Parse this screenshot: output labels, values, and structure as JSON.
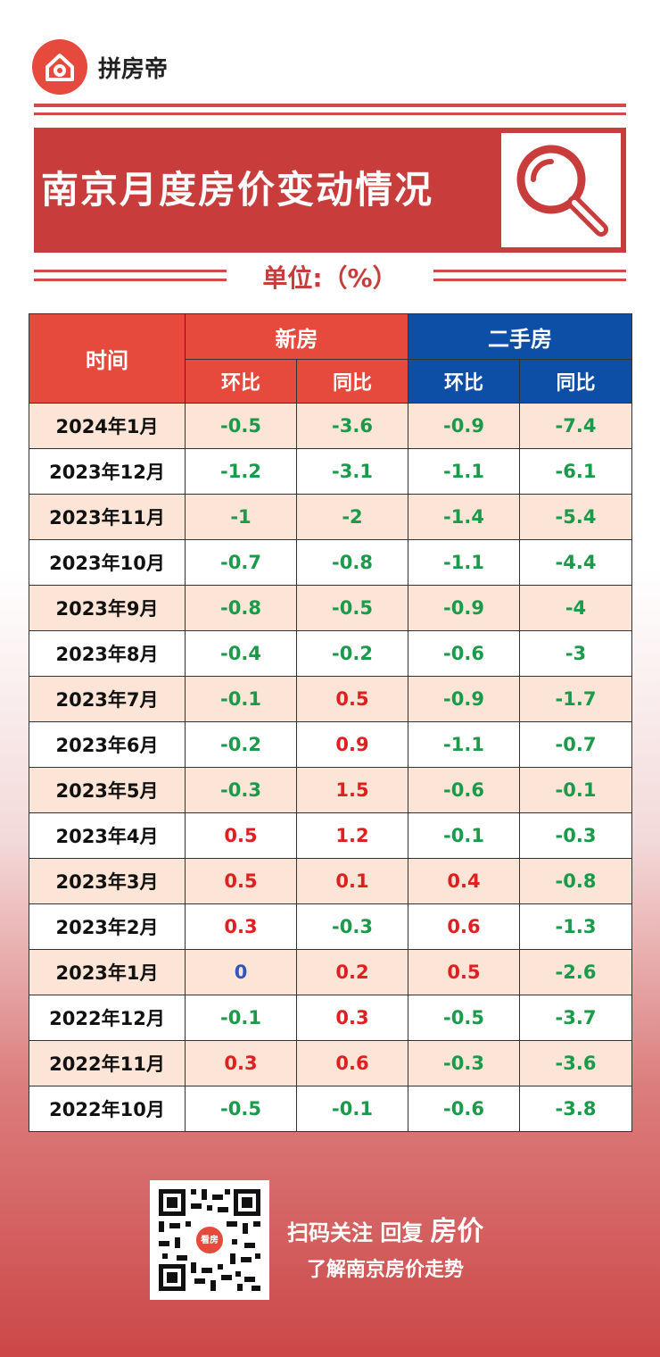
{
  "brand": {
    "name": "拼房帝"
  },
  "title": "南京月度房价变动情况",
  "unit": "单位:（%）",
  "table": {
    "time_header": "时间",
    "new_header": "新房",
    "used_header": "二手房",
    "sub_mom": "环比",
    "sub_yoy": "同比",
    "rows": [
      {
        "date": "2024年1月",
        "new_mom": "-0.5",
        "new_yoy": "-3.6",
        "used_mom": "-0.9",
        "used_yoy": "-7.4"
      },
      {
        "date": "2023年12月",
        "new_mom": "-1.2",
        "new_yoy": "-3.1",
        "used_mom": "-1.1",
        "used_yoy": "-6.1"
      },
      {
        "date": "2023年11月",
        "new_mom": "-1",
        "new_yoy": "-2",
        "used_mom": "-1.4",
        "used_yoy": "-5.4"
      },
      {
        "date": "2023年10月",
        "new_mom": "-0.7",
        "new_yoy": "-0.8",
        "used_mom": "-1.1",
        "used_yoy": "-4.4"
      },
      {
        "date": "2023年9月",
        "new_mom": "-0.8",
        "new_yoy": "-0.5",
        "used_mom": "-0.9",
        "used_yoy": "-4"
      },
      {
        "date": "2023年8月",
        "new_mom": "-0.4",
        "new_yoy": "-0.2",
        "used_mom": "-0.6",
        "used_yoy": "-3"
      },
      {
        "date": "2023年7月",
        "new_mom": "-0.1",
        "new_yoy": "0.5",
        "used_mom": "-0.9",
        "used_yoy": "-1.7"
      },
      {
        "date": "2023年6月",
        "new_mom": "-0.2",
        "new_yoy": "0.9",
        "used_mom": "-1.1",
        "used_yoy": "-0.7"
      },
      {
        "date": "2023年5月",
        "new_mom": "-0.3",
        "new_yoy": "1.5",
        "used_mom": "-0.6",
        "used_yoy": "-0.1"
      },
      {
        "date": "2023年4月",
        "new_mom": "0.5",
        "new_yoy": "1.2",
        "used_mom": "-0.1",
        "used_yoy": "-0.3"
      },
      {
        "date": "2023年3月",
        "new_mom": "0.5",
        "new_yoy": "0.1",
        "used_mom": "0.4",
        "used_yoy": "-0.8"
      },
      {
        "date": "2023年2月",
        "new_mom": "0.3",
        "new_yoy": "-0.3",
        "used_mom": "0.6",
        "used_yoy": "-1.3"
      },
      {
        "date": "2023年1月",
        "new_mom": "0",
        "new_yoy": "0.2",
        "used_mom": "0.5",
        "used_yoy": "-2.6"
      },
      {
        "date": "2022年12月",
        "new_mom": "-0.1",
        "new_yoy": "0.3",
        "used_mom": "-0.5",
        "used_yoy": "-3.7"
      },
      {
        "date": "2022年11月",
        "new_mom": "0.3",
        "new_yoy": "0.6",
        "used_mom": "-0.3",
        "used_yoy": "-3.6"
      },
      {
        "date": "2022年10月",
        "new_mom": "-0.5",
        "new_yoy": "-0.1",
        "used_mom": "-0.6",
        "used_yoy": "-3.8"
      }
    ]
  },
  "footer": {
    "qr_badge": "看房",
    "cta_line1_a": "扫码关注 回复",
    "cta_line1_b": "房价",
    "cta_line2": "了解南京房价走势"
  },
  "colors": {
    "brand_red": "#e64a3c",
    "title_red": "#c93c3c",
    "used_blue": "#0d4ea6",
    "negative_green": "#1a9a4a",
    "positive_red": "#e02020",
    "zero_blue": "#3355bb"
  }
}
